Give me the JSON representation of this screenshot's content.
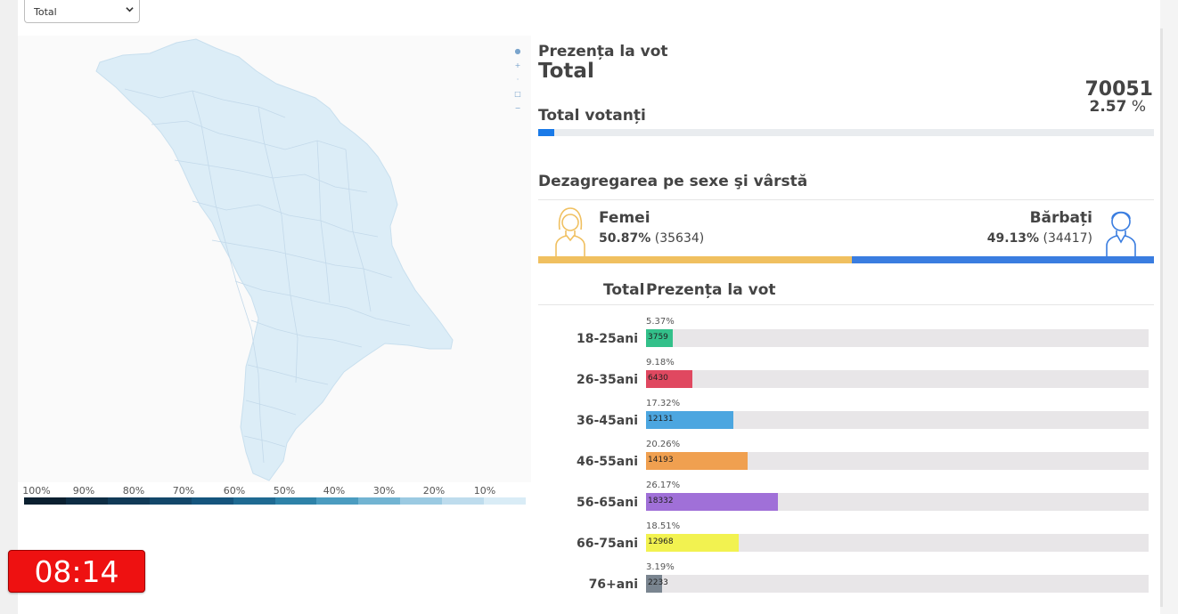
{
  "filter": {
    "selected": "Total"
  },
  "map": {
    "legend": [
      "100%",
      "90%",
      "80%",
      "70%",
      "60%",
      "50%",
      "40%",
      "30%",
      "20%",
      "10%"
    ],
    "legend_colors": [
      "#0b2030",
      "#0e2d44",
      "#113a57",
      "#13476a",
      "#15557d",
      "#1f6a92",
      "#2e82a8",
      "#4b9cc0",
      "#72b4d2",
      "#9bcae2",
      "#bedced",
      "#d9ecf6"
    ],
    "fill_color": "#dcedf7"
  },
  "timer": {
    "value": "08:14"
  },
  "summary": {
    "subtitle": "Prezența la vot",
    "title": "Total",
    "voters_count": "70051",
    "voters_percent": "2.57",
    "percent_sign": "%",
    "voters_label": "Total votanți",
    "progress": 0.0257
  },
  "gender": {
    "section_title": "Dezagregarea pe sexe şi vârstă",
    "female": {
      "label": "Femei",
      "percent": "50.87%",
      "count": "(35634)",
      "share": 0.5087,
      "color": "#f0c060"
    },
    "male": {
      "label": "Bărbați",
      "percent": "49.13%",
      "count": "(34417)",
      "share": 0.4913,
      "color": "#3a7de0"
    }
  },
  "age": {
    "header_total": "Total",
    "header_presence": "Prezența la vot",
    "rows": [
      {
        "label": "18-25ani",
        "percent": "5.37%",
        "count": "3759",
        "share": 0.0537,
        "color": "#33c08a"
      },
      {
        "label": "26-35ani",
        "percent": "9.18%",
        "count": "6430",
        "share": 0.0918,
        "color": "#e04860"
      },
      {
        "label": "36-45ani",
        "percent": "17.32%",
        "count": "12131",
        "share": 0.1732,
        "color": "#4ca6e0"
      },
      {
        "label": "46-55ani",
        "percent": "20.26%",
        "count": "14193",
        "share": 0.2026,
        "color": "#f0a050"
      },
      {
        "label": "56-65ani",
        "percent": "26.17%",
        "count": "18332",
        "share": 0.2617,
        "color": "#a070d8"
      },
      {
        "label": "66-75ani",
        "percent": "18.51%",
        "count": "12968",
        "share": 0.1851,
        "color": "#f2f250"
      },
      {
        "label": "76+ani",
        "percent": "3.19%",
        "count": "2233",
        "share": 0.0319,
        "color": "#7a8590"
      }
    ]
  }
}
